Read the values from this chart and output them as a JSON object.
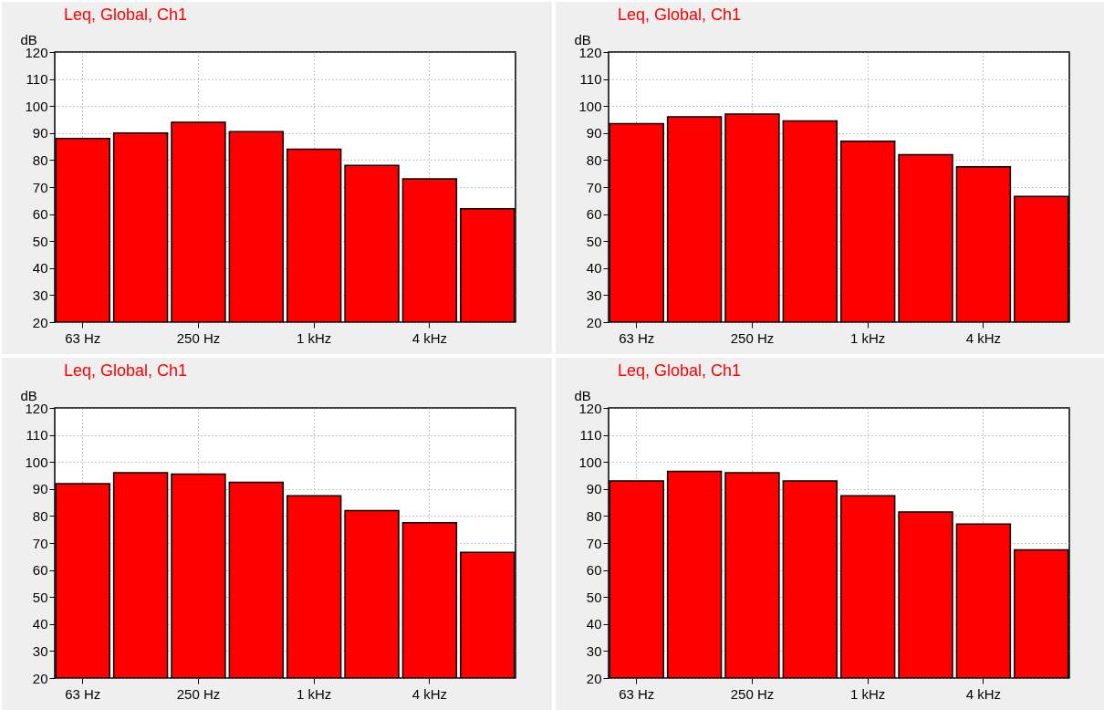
{
  "chart_data": [
    {
      "type": "bar",
      "title": "Leq, Global, Ch1",
      "ylabel": "dB",
      "categories": [
        "63 Hz",
        null,
        "250 Hz",
        null,
        "1 kHz",
        null,
        "4 kHz",
        null
      ],
      "values": [
        88,
        90,
        94,
        90.5,
        84,
        78,
        73,
        62
      ],
      "color": "#ff0000",
      "ylim": [
        20,
        120
      ],
      "yticks": [
        20,
        30,
        40,
        50,
        60,
        70,
        80,
        90,
        100,
        110,
        120
      ],
      "grid": true
    },
    {
      "type": "bar",
      "title": "Leq, Global, Ch1",
      "ylabel": "dB",
      "categories": [
        "63 Hz",
        null,
        "250 Hz",
        null,
        "1 kHz",
        null,
        "4 kHz",
        null
      ],
      "values": [
        93.5,
        96,
        97,
        94.5,
        87,
        82,
        77.5,
        66.5
      ],
      "color": "#ff0000",
      "ylim": [
        20,
        120
      ],
      "yticks": [
        20,
        30,
        40,
        50,
        60,
        70,
        80,
        90,
        100,
        110,
        120
      ],
      "grid": true
    },
    {
      "type": "bar",
      "title": "Leq, Global, Ch1",
      "ylabel": "dB",
      "categories": [
        "63 Hz",
        null,
        "250 Hz",
        null,
        "1 kHz",
        null,
        "4 kHz",
        null
      ],
      "values": [
        92,
        96,
        95.5,
        92.5,
        87.5,
        82,
        77.5,
        66.5
      ],
      "color": "#ff0000",
      "ylim": [
        20,
        120
      ],
      "yticks": [
        20,
        30,
        40,
        50,
        60,
        70,
        80,
        90,
        100,
        110,
        120
      ],
      "grid": true
    },
    {
      "type": "bar",
      "title": "Leq, Global, Ch1",
      "ylabel": "dB",
      "categories": [
        "63 Hz",
        null,
        "250 Hz",
        null,
        "1 kHz",
        null,
        "4 kHz",
        null
      ],
      "values": [
        93,
        96.5,
        96,
        93,
        87.5,
        81.5,
        77,
        67.5
      ],
      "color": "#ff0000",
      "ylim": [
        20,
        120
      ],
      "yticks": [
        20,
        30,
        40,
        50,
        60,
        70,
        80,
        90,
        100,
        110,
        120
      ],
      "grid": true
    }
  ]
}
